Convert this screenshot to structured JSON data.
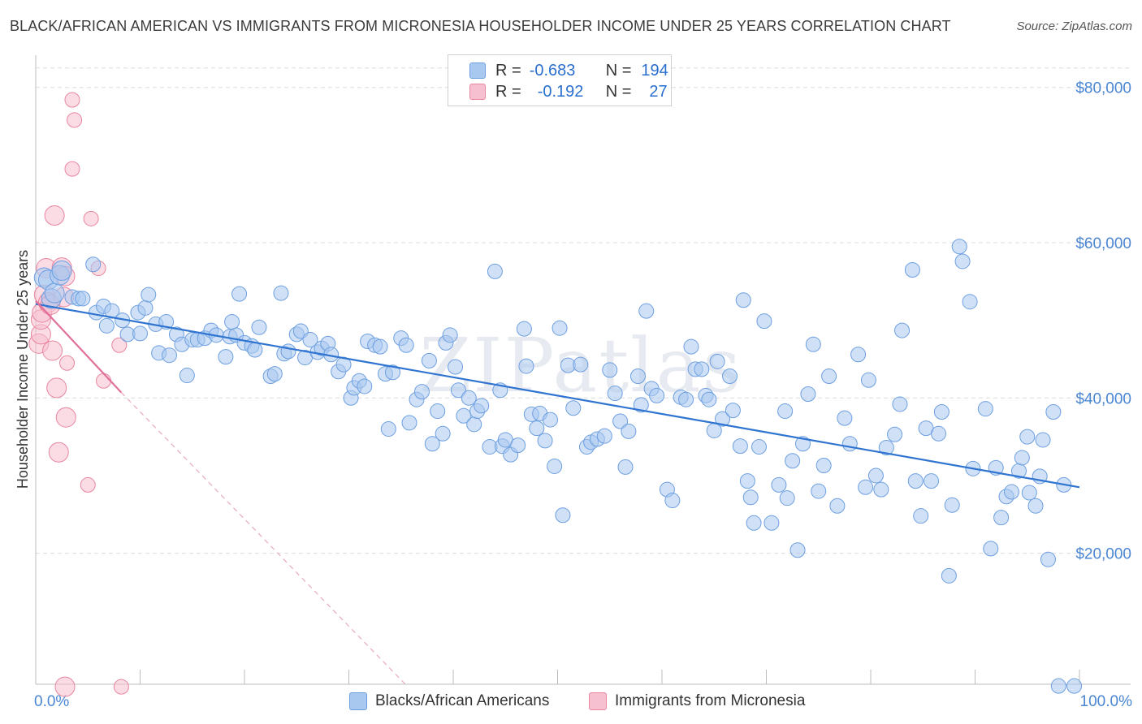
{
  "title": "BLACK/AFRICAN AMERICAN VS IMMIGRANTS FROM MICRONESIA HOUSEHOLDER INCOME UNDER 25 YEARS CORRELATION CHART",
  "source": "Source: ZipAtlas.com",
  "watermark": "ZIPatlas",
  "legend": {
    "r_label": "R =",
    "n_label": "N =",
    "rows": [
      {
        "r": "-0.683",
        "n": "194",
        "color": "#a9c8f0",
        "border": "#6d9fe0"
      },
      {
        "r": "-0.192",
        "n": "27",
        "color": "#f7c0d0",
        "border": "#e8869f"
      }
    ]
  },
  "bottom_legend": [
    {
      "label": "Blacks/African Americans",
      "color": "#a9c8f0",
      "border": "#6d9fe0"
    },
    {
      "label": "Immigrants from Micronesia",
      "color": "#f7c0d0",
      "border": "#e8869f"
    }
  ],
  "chart_data": {
    "type": "scatter",
    "ylabel": "Householder Income Under 25 years",
    "xlim": [
      0,
      100
    ],
    "ylim": [
      3000,
      83000
    ],
    "x_tick_labels": [
      "0.0%",
      "100.0%"
    ],
    "y_ticks": [
      20000,
      40000,
      60000,
      80000
    ],
    "y_tick_labels": [
      "$20,000",
      "$40,000",
      "$60,000",
      "$80,000"
    ],
    "grid": true,
    "colors": {
      "blue_fill": "#a9c8f0",
      "blue_stroke": "#6d9fe0",
      "blue_line": "#2f74d0",
      "pink_fill": "#f7c0d0",
      "pink_stroke": "#e8869f",
      "pink_line": "#e0709a",
      "tick_label": "#4a86d4",
      "grid": "#dcdcdc"
    },
    "series": [
      {
        "name": "Blacks/African Americans",
        "trend": {
          "x": [
            0,
            100
          ],
          "y": [
            52100,
            28500
          ]
        },
        "points": [
          [
            0.8,
            55500
          ],
          [
            1.2,
            55200
          ],
          [
            1.5,
            52800
          ],
          [
            1.8,
            53500
          ],
          [
            2.3,
            55800
          ],
          [
            2.5,
            56400
          ],
          [
            3.5,
            53000
          ],
          [
            4.1,
            52800
          ],
          [
            4.5,
            52800
          ],
          [
            5.5,
            57200
          ],
          [
            5.8,
            51000
          ],
          [
            6.5,
            51800
          ],
          [
            6.8,
            49300
          ],
          [
            7.3,
            51200
          ],
          [
            8.3,
            50000
          ],
          [
            8.8,
            48200
          ],
          [
            9.8,
            51000
          ],
          [
            10,
            48300
          ],
          [
            10.5,
            51600
          ],
          [
            10.8,
            53300
          ],
          [
            11.5,
            49500
          ],
          [
            11.8,
            45800
          ],
          [
            12.8,
            45500
          ],
          [
            12.5,
            49800
          ],
          [
            13.5,
            48200
          ],
          [
            14,
            46900
          ],
          [
            14.5,
            42900
          ],
          [
            15,
            47500
          ],
          [
            15.5,
            47500
          ],
          [
            16.2,
            47700
          ],
          [
            16.8,
            48700
          ],
          [
            17.3,
            48100
          ],
          [
            18.2,
            45300
          ],
          [
            18.6,
            47900
          ],
          [
            19.2,
            48100
          ],
          [
            18.8,
            49800
          ],
          [
            19.5,
            53400
          ],
          [
            20,
            47100
          ],
          [
            20.7,
            46700
          ],
          [
            21,
            46200
          ],
          [
            21.4,
            49100
          ],
          [
            22.5,
            42800
          ],
          [
            22.9,
            43100
          ],
          [
            23.5,
            53500
          ],
          [
            23.8,
            45700
          ],
          [
            24.2,
            46000
          ],
          [
            25,
            48200
          ],
          [
            25.4,
            48600
          ],
          [
            25.8,
            45200
          ],
          [
            26.3,
            47500
          ],
          [
            27,
            45900
          ],
          [
            27.4,
            46400
          ],
          [
            28,
            47000
          ],
          [
            28.3,
            45600
          ],
          [
            29,
            43400
          ],
          [
            29.5,
            44300
          ],
          [
            30.2,
            40000
          ],
          [
            30.5,
            41300
          ],
          [
            31,
            42200
          ],
          [
            31.5,
            41500
          ],
          [
            31.8,
            47300
          ],
          [
            32.5,
            46800
          ],
          [
            33,
            46600
          ],
          [
            33.5,
            43100
          ],
          [
            34.2,
            43300
          ],
          [
            35,
            47700
          ],
          [
            35.5,
            46800
          ],
          [
            33.8,
            36000
          ],
          [
            35.8,
            36800
          ],
          [
            36.5,
            39800
          ],
          [
            37,
            40800
          ],
          [
            37.7,
            44800
          ],
          [
            38,
            34100
          ],
          [
            38.5,
            38300
          ],
          [
            39,
            35400
          ],
          [
            39.3,
            47100
          ],
          [
            39.7,
            48100
          ],
          [
            40.2,
            44000
          ],
          [
            40.5,
            41000
          ],
          [
            41,
            37700
          ],
          [
            41.5,
            40000
          ],
          [
            42,
            36600
          ],
          [
            42.3,
            38300
          ],
          [
            42.7,
            39000
          ],
          [
            43.5,
            33700
          ],
          [
            44,
            56300
          ],
          [
            44.5,
            41000
          ],
          [
            44.7,
            33800
          ],
          [
            45,
            34600
          ],
          [
            45.5,
            32700
          ],
          [
            46.2,
            33900
          ],
          [
            46.8,
            48900
          ],
          [
            47,
            44100
          ],
          [
            47.5,
            37900
          ],
          [
            48,
            36100
          ],
          [
            48.3,
            38000
          ],
          [
            48.8,
            34500
          ],
          [
            49.3,
            37200
          ],
          [
            49.7,
            31200
          ],
          [
            50.2,
            49000
          ],
          [
            50.5,
            24900
          ],
          [
            51,
            44200
          ],
          [
            51.5,
            38700
          ],
          [
            52.2,
            44300
          ],
          [
            52.8,
            33700
          ],
          [
            53.2,
            34300
          ],
          [
            53.8,
            34700
          ],
          [
            54.5,
            35100
          ],
          [
            55,
            43600
          ],
          [
            55.5,
            40600
          ],
          [
            56,
            37000
          ],
          [
            56.5,
            31100
          ],
          [
            56.8,
            35700
          ],
          [
            57.7,
            42800
          ],
          [
            58,
            39100
          ],
          [
            58.5,
            51200
          ],
          [
            59,
            41200
          ],
          [
            59.5,
            40300
          ],
          [
            60.5,
            28200
          ],
          [
            61,
            26800
          ],
          [
            61.8,
            40100
          ],
          [
            62.3,
            39800
          ],
          [
            62.8,
            46600
          ],
          [
            63.2,
            43700
          ],
          [
            63.8,
            43700
          ],
          [
            64.2,
            40300
          ],
          [
            64.5,
            39800
          ],
          [
            65,
            35800
          ],
          [
            65.3,
            44700
          ],
          [
            65.8,
            37300
          ],
          [
            66.5,
            42800
          ],
          [
            66.8,
            38400
          ],
          [
            67.5,
            33800
          ],
          [
            67.8,
            52600
          ],
          [
            68.2,
            29300
          ],
          [
            68.5,
            27200
          ],
          [
            68.8,
            23900
          ],
          [
            69.3,
            33700
          ],
          [
            69.8,
            49900
          ],
          [
            70.5,
            23900
          ],
          [
            71.2,
            28800
          ],
          [
            71.8,
            38300
          ],
          [
            72,
            27100
          ],
          [
            72.5,
            31900
          ],
          [
            73,
            20400
          ],
          [
            73.5,
            34100
          ],
          [
            74,
            40500
          ],
          [
            74.5,
            46900
          ],
          [
            75,
            28000
          ],
          [
            75.5,
            31300
          ],
          [
            76,
            42800
          ],
          [
            76.8,
            26100
          ],
          [
            77.5,
            37400
          ],
          [
            78,
            34100
          ],
          [
            78.8,
            45600
          ],
          [
            79.5,
            28500
          ],
          [
            79.8,
            42300
          ],
          [
            80.5,
            30000
          ],
          [
            81,
            28200
          ],
          [
            81.5,
            33600
          ],
          [
            82.3,
            35300
          ],
          [
            82.8,
            39200
          ],
          [
            83,
            48700
          ],
          [
            84,
            56500
          ],
          [
            84.3,
            29300
          ],
          [
            84.8,
            24800
          ],
          [
            85.3,
            36100
          ],
          [
            85.8,
            29300
          ],
          [
            86.5,
            35400
          ],
          [
            86.8,
            38200
          ],
          [
            87.8,
            26200
          ],
          [
            87.5,
            17100
          ],
          [
            88.5,
            59500
          ],
          [
            88.8,
            57600
          ],
          [
            89.5,
            52400
          ],
          [
            89.8,
            30900
          ],
          [
            91,
            38600
          ],
          [
            91.5,
            20600
          ],
          [
            92,
            31000
          ],
          [
            92.5,
            24600
          ],
          [
            93,
            27300
          ],
          [
            93.5,
            27900
          ],
          [
            94.2,
            30600
          ],
          [
            94.5,
            32300
          ],
          [
            95,
            35000
          ],
          [
            95.2,
            27800
          ],
          [
            95.8,
            26100
          ],
          [
            96.2,
            29900
          ],
          [
            96.5,
            34600
          ],
          [
            97,
            19200
          ],
          [
            97.5,
            38200
          ],
          [
            98,
            2900
          ],
          [
            98.5,
            28800
          ],
          [
            99.5,
            2900
          ]
        ]
      },
      {
        "name": "Immigrants from Micronesia",
        "trend": {
          "x": [
            0,
            8.2
          ],
          "y": [
            52500,
            40700
          ]
        },
        "trend_dashed": {
          "x": [
            8.2,
            35.5
          ],
          "y": [
            40700,
            3000
          ]
        },
        "points": [
          [
            0.3,
            47000
          ],
          [
            0.5,
            48200
          ],
          [
            0.5,
            50100
          ],
          [
            0.6,
            51000
          ],
          [
            0.8,
            53300
          ],
          [
            1,
            56700
          ],
          [
            1.2,
            52300
          ],
          [
            1.4,
            52000
          ],
          [
            1.6,
            46100
          ],
          [
            1.8,
            63500
          ],
          [
            2,
            41300
          ],
          [
            2.2,
            33000
          ],
          [
            2.5,
            56800
          ],
          [
            2.8,
            55700
          ],
          [
            2.7,
            53000
          ],
          [
            2.8,
            2800
          ],
          [
            2.9,
            37500
          ],
          [
            3,
            44500
          ],
          [
            3.5,
            69500
          ],
          [
            3.5,
            78400
          ],
          [
            3.7,
            75800
          ],
          [
            5,
            28800
          ],
          [
            5.3,
            63100
          ],
          [
            6,
            56700
          ],
          [
            6.5,
            42200
          ],
          [
            8,
            46800
          ],
          [
            8.2,
            2800
          ]
        ]
      }
    ]
  }
}
